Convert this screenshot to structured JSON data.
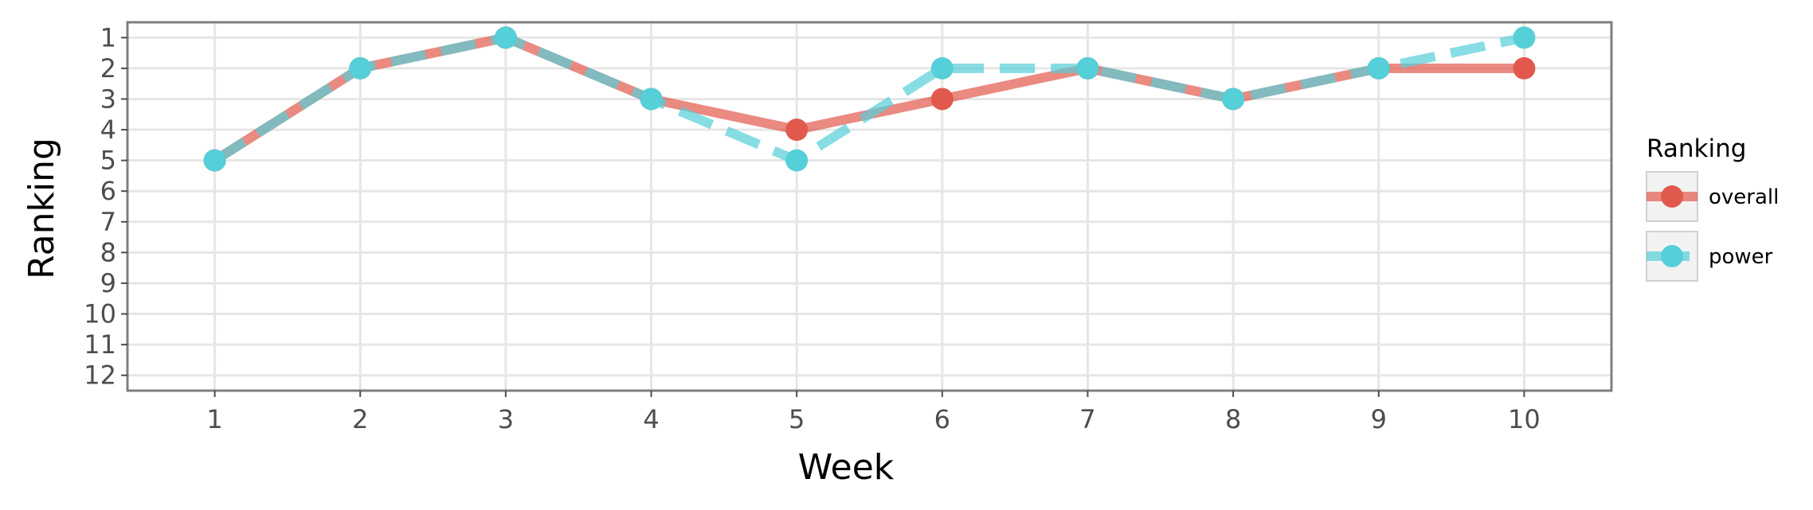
{
  "chart_data": {
    "type": "line",
    "xlabel": "Week",
    "ylabel": "Ranking",
    "x": [
      1,
      2,
      3,
      4,
      5,
      6,
      7,
      8,
      9,
      10
    ],
    "xticks": [
      "1",
      "2",
      "3",
      "4",
      "5",
      "6",
      "7",
      "8",
      "9",
      "10"
    ],
    "yticks": [
      "1",
      "2",
      "3",
      "4",
      "5",
      "6",
      "7",
      "8",
      "9",
      "10",
      "11",
      "12"
    ],
    "xlim": [
      0.4,
      10.6
    ],
    "ylim": [
      12.5,
      0.5
    ],
    "y_reversed": true,
    "grid": true,
    "legend": {
      "title": "Ranking",
      "position": "right"
    },
    "series": [
      {
        "name": "overall",
        "values": [
          5,
          2,
          1,
          3,
          4,
          3,
          2,
          3,
          2,
          2
        ],
        "color": "#e1594c",
        "linestyle": "solid"
      },
      {
        "name": "power",
        "values": [
          5,
          2,
          1,
          3,
          5,
          2,
          2,
          3,
          2,
          1
        ],
        "color": "#55cfd8",
        "linestyle": "dashed"
      }
    ]
  }
}
